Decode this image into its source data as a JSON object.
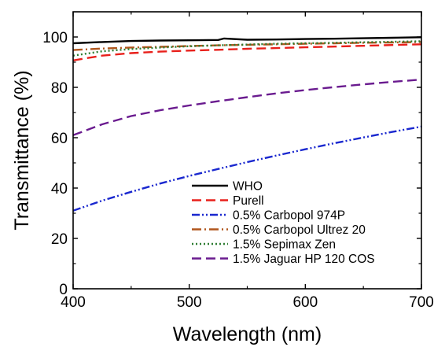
{
  "chart_data": {
    "type": "line",
    "title": "",
    "xlabel": "Wavelength (nm)",
    "ylabel": "Transmittance (%)",
    "xlim": [
      400,
      700
    ],
    "ylim": [
      0,
      110
    ],
    "xticks": [
      400,
      500,
      600,
      700
    ],
    "yticks": [
      0,
      20,
      40,
      60,
      80,
      100
    ],
    "grid": false,
    "legend_position": "bottom-right",
    "series": [
      {
        "name": "WHO",
        "color": "#000000",
        "dash": "solid",
        "x": [
          400,
          425,
          450,
          475,
          500,
          525,
          530,
          550,
          575,
          600,
          625,
          650,
          675,
          700
        ],
        "y": [
          97.5,
          98.0,
          98.4,
          98.6,
          98.7,
          98.8,
          99.4,
          98.9,
          99.0,
          99.2,
          99.3,
          99.5,
          99.7,
          99.9
        ]
      },
      {
        "name": "Purell",
        "color": "#e8201b",
        "dash": "dashed",
        "x": [
          400,
          425,
          450,
          475,
          500,
          525,
          550,
          575,
          600,
          625,
          650,
          675,
          700
        ],
        "y": [
          90.7,
          92.6,
          93.6,
          94.2,
          94.6,
          94.9,
          95.3,
          95.6,
          95.9,
          96.2,
          96.5,
          96.8,
          97.1
        ]
      },
      {
        "name": "0.5% Carbopol 974P",
        "color": "#1a28cf",
        "dash": "dashdotdot",
        "x": [
          400,
          425,
          450,
          475,
          500,
          525,
          550,
          575,
          600,
          625,
          650,
          675,
          700
        ],
        "y": [
          31.0,
          35.0,
          38.5,
          41.8,
          44.8,
          47.6,
          50.3,
          52.9,
          55.4,
          57.8,
          60.1,
          62.3,
          64.4
        ]
      },
      {
        "name": "0.5% Carbopol Ultrez 20",
        "color": "#b0561d",
        "dash": "dashdot",
        "x": [
          400,
          425,
          450,
          475,
          500,
          525,
          550,
          575,
          600,
          625,
          650,
          675,
          700
        ],
        "y": [
          94.8,
          95.4,
          95.8,
          96.1,
          96.4,
          96.7,
          96.9,
          97.1,
          97.3,
          97.5,
          97.7,
          97.8,
          98.0
        ]
      },
      {
        "name": "1.5% Sepimax Zen",
        "color": "#2e7d32",
        "dash": "dotted",
        "x": [
          400,
          425,
          450,
          475,
          500,
          525,
          550,
          575,
          600,
          625,
          650,
          675,
          700
        ],
        "y": [
          92.6,
          94.3,
          95.2,
          95.8,
          96.3,
          96.7,
          97.0,
          97.3,
          97.5,
          97.7,
          97.9,
          98.1,
          98.3
        ]
      },
      {
        "name": "1.5% Jaguar HP 120 COS",
        "color": "#6a1b8f",
        "dash": "dashed",
        "x": [
          400,
          425,
          450,
          475,
          500,
          525,
          550,
          575,
          600,
          625,
          650,
          675,
          700
        ],
        "y": [
          61.0,
          65.3,
          68.6,
          70.9,
          72.8,
          74.5,
          76.1,
          77.6,
          78.9,
          80.1,
          81.2,
          82.2,
          83.1
        ]
      }
    ]
  }
}
